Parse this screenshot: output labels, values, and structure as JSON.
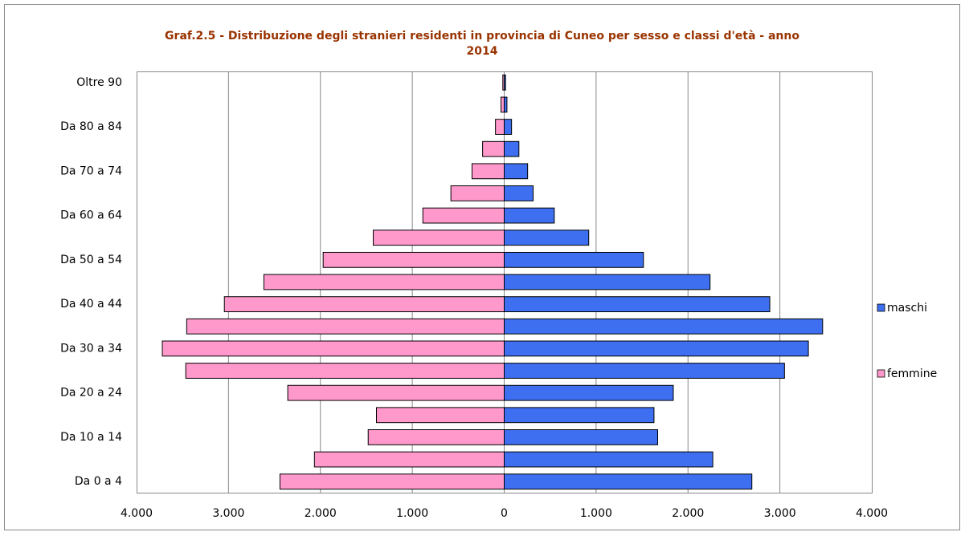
{
  "chart_data": {
    "type": "pyramid",
    "title": "Graf.2.5 - Distribuzione degli stranieri residenti in provincia di Cuneo per sesso e classi d'età - anno 2014",
    "categories": [
      "Da 0 a 4",
      null,
      "Da 10 a 14",
      null,
      "Da 20 a 24",
      null,
      "Da 30 a 34",
      null,
      "Da 40 a 44",
      null,
      "Da 50 a 54",
      null,
      "Da 60 a 64",
      null,
      "Da 70 a 74",
      null,
      "Da 80 a 84",
      null,
      "Oltre 90"
    ],
    "series": [
      {
        "name": "maschi",
        "color": "#3d6ff0",
        "values": [
          2695,
          2270,
          1670,
          1630,
          1840,
          3050,
          3310,
          3465,
          2890,
          2240,
          1515,
          920,
          545,
          315,
          255,
          160,
          80,
          30,
          15
        ]
      },
      {
        "name": "femmine",
        "color": "#ff99cc",
        "values": [
          -2440,
          -2065,
          -1480,
          -1390,
          -2355,
          -3465,
          -3720,
          -3455,
          -3045,
          -2615,
          -1970,
          -1425,
          -885,
          -580,
          -350,
          -235,
          -95,
          -35,
          -15
        ]
      }
    ],
    "xlim": [
      -4000,
      4000
    ],
    "xticks": [
      {
        "value": -4000,
        "label": "4.000"
      },
      {
        "value": -3000,
        "label": "3.000"
      },
      {
        "value": -2000,
        "label": "2.000"
      },
      {
        "value": -1000,
        "label": "1.000"
      },
      0,
      {
        "value": 1000,
        "label": "1.000"
      },
      {
        "value": 2000,
        "label": "2.000"
      },
      {
        "value": 3000,
        "label": "3.000"
      },
      {
        "value": 4000,
        "label": "4.000"
      }
    ],
    "grid": true,
    "legend": "right"
  }
}
